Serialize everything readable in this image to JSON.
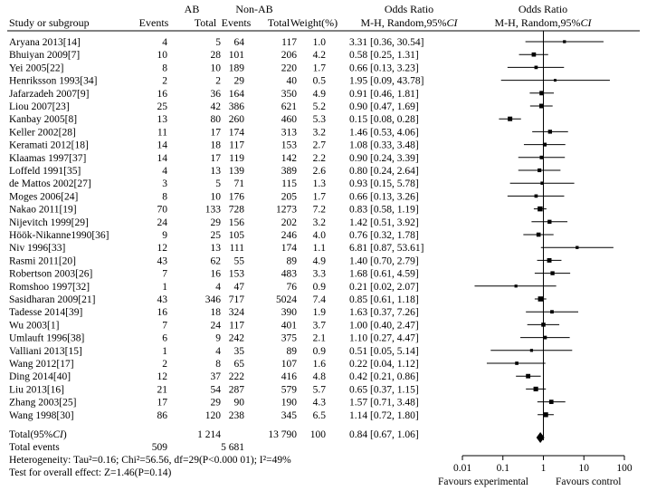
{
  "header": {
    "study_col": "Study or subgroup",
    "group1_name": "AB",
    "group2_name": "Non-AB",
    "events_label": "Events",
    "total_label": "Total",
    "weight_label": "Weight(%)",
    "or_title": "Odds Ratio",
    "or_method": "M-H, Random,95%",
    "ci_italic": "CI"
  },
  "studies": [
    {
      "name": "Aryana 2013[14]",
      "e1": "4",
      "t1": "5",
      "e2": "64",
      "t2": "117",
      "w": "1.0",
      "ci": "3.31 [0.36, 30.54]"
    },
    {
      "name": "Bhuiyan 2009[7]",
      "e1": "10",
      "t1": "28",
      "e2": "101",
      "t2": "206",
      "w": "4.2",
      "ci": "0.58 [0.25, 1.31]"
    },
    {
      "name": "Yei 2005[22]",
      "e1": "8",
      "t1": "10",
      "e2": "189",
      "t2": "220",
      "w": "1.7",
      "ci": "0.66 [0.13, 3.23]"
    },
    {
      "name": "Henriksson 1993[34]",
      "e1": "2",
      "t1": "2",
      "e2": "29",
      "t2": "40",
      "w": "0.5",
      "ci": "1.95 [0.09, 43.78]"
    },
    {
      "name": "Jafarzadeh 2007[9]",
      "e1": "16",
      "t1": "36",
      "e2": "164",
      "t2": "350",
      "w": "4.9",
      "ci": "0.91 [0.46, 1.81]"
    },
    {
      "name": "Liou 2007[23]",
      "e1": "25",
      "t1": "42",
      "e2": "386",
      "t2": "621",
      "w": "5.2",
      "ci": "0.90 [0.47, 1.69]"
    },
    {
      "name": "Kanbay 2005[8]",
      "e1": "13",
      "t1": "80",
      "e2": "260",
      "t2": "460",
      "w": "5.3",
      "ci": "0.15 [0.08, 0.28]"
    },
    {
      "name": "Keller 2002[28]",
      "e1": "11",
      "t1": "17",
      "e2": "174",
      "t2": "313",
      "w": "3.2",
      "ci": "1.46 [0.53, 4.06]"
    },
    {
      "name": "Keramati 2012[18]",
      "e1": "14",
      "t1": "18",
      "e2": "117",
      "t2": "153",
      "w": "2.7",
      "ci": "1.08 [0.33, 3.48]"
    },
    {
      "name": "Klaamas 1997[37]",
      "e1": "14",
      "t1": "17",
      "e2": "119",
      "t2": "142",
      "w": "2.2",
      "ci": "0.90 [0.24, 3.39]"
    },
    {
      "name": "Loffeld 1991[35]",
      "e1": "4",
      "t1": "13",
      "e2": "139",
      "t2": "389",
      "w": "2.6",
      "ci": "0.80 [0.24, 2.64]"
    },
    {
      "name": "de Mattos 2002[27]",
      "e1": "3",
      "t1": "5",
      "e2": "71",
      "t2": "115",
      "w": "1.3",
      "ci": "0.93 [0.15, 5.78]"
    },
    {
      "name": "Moges 2006[24]",
      "e1": "8",
      "t1": "10",
      "e2": "176",
      "t2": "205",
      "w": "1.7",
      "ci": "0.66 [0.13, 3.26]"
    },
    {
      "name": "Nakao 2011[19]",
      "e1": "70",
      "t1": "133",
      "e2": "728",
      "t2": "1273",
      "w": "7.2",
      "ci": "0.83 [0.58, 1.19]"
    },
    {
      "name": "Nijevitch 1999[29]",
      "e1": "24",
      "t1": "29",
      "e2": "156",
      "t2": "202",
      "w": "3.2",
      "ci": "1.42 [0.51, 3.92]"
    },
    {
      "name": "Höök-Nikanne1990[36]",
      "e1": "9",
      "t1": "25",
      "e2": "105",
      "t2": "246",
      "w": "4.0",
      "ci": "0.76 [0.32, 1.78]"
    },
    {
      "name": "Niv 1996[33]",
      "e1": "12",
      "t1": "13",
      "e2": "111",
      "t2": "174",
      "w": "1.1",
      "ci": "6.81 [0.87, 53.61]"
    },
    {
      "name": "Rasmi 2011[20]",
      "e1": "43",
      "t1": "62",
      "e2": "55",
      "t2": "89",
      "w": "4.9",
      "ci": "1.40 [0.70, 2.79]"
    },
    {
      "name": "Robertson 2003[26]",
      "e1": "7",
      "t1": "16",
      "e2": "153",
      "t2": "483",
      "w": "3.3",
      "ci": "1.68 [0.61, 4.59]"
    },
    {
      "name": "Romshoo 1997[32]",
      "e1": "1",
      "t1": "4",
      "e2": "47",
      "t2": "76",
      "w": "0.9",
      "ci": "0.21 [0.02, 2.07]"
    },
    {
      "name": "Sasidharan 2009[21]",
      "e1": "43",
      "t1": "346",
      "e2": "717",
      "t2": "5024",
      "w": "7.4",
      "ci": "0.85 [0.61, 1.18]"
    },
    {
      "name": "Tadesse 2014[39]",
      "e1": "16",
      "t1": "18",
      "e2": "324",
      "t2": "390",
      "w": "1.9",
      "ci": "1.63 [0.37, 7.26]"
    },
    {
      "name": "Wu 2003[1]",
      "e1": "7",
      "t1": "24",
      "e2": "117",
      "t2": "401",
      "w": "3.7",
      "ci": "1.00 [0.40, 2.47]"
    },
    {
      "name": "Umlauft 1996[38]",
      "e1": "6",
      "t1": "9",
      "e2": "242",
      "t2": "375",
      "w": "2.1",
      "ci": "1.10 [0.27, 4.47]"
    },
    {
      "name": "Valliani 2013[15]",
      "e1": "1",
      "t1": "4",
      "e2": "35",
      "t2": "89",
      "w": "0.9",
      "ci": "0.51 [0.05, 5.14]"
    },
    {
      "name": "Wang 2012[17]",
      "e1": "2",
      "t1": "8",
      "e2": "65",
      "t2": "107",
      "w": "1.6",
      "ci": "0.22 [0.04, 1.12]"
    },
    {
      "name": "Ding 2014[40]",
      "e1": "12",
      "t1": "37",
      "e2": "222",
      "t2": "416",
      "w": "4.8",
      "ci": "0.42 [0.21, 0.86]"
    },
    {
      "name": "Liu 2013[16]",
      "e1": "21",
      "t1": "54",
      "e2": "287",
      "t2": "579",
      "w": "5.7",
      "ci": "0.65 [0.37, 1.15]"
    },
    {
      "name": "Zhang 2003[25]",
      "e1": "17",
      "t1": "29",
      "e2": "90",
      "t2": "190",
      "w": "4.3",
      "ci": "1.57 [0.71, 3.48]"
    },
    {
      "name": "Wang 1998[30]",
      "e1": "86",
      "t1": "120",
      "e2": "238",
      "t2": "345",
      "w": "6.5",
      "ci": "1.14 [0.72, 1.80]"
    }
  ],
  "total": {
    "label": "Total(95%",
    "ci_italic": "CI",
    "label_close": ")",
    "t1": "1 214",
    "t2": "13 790",
    "w": "100",
    "ci": "0.84 [0.67, 1.06]",
    "events_label": "Total events",
    "e1": "509",
    "e2": "5 681"
  },
  "heterogeneity": "Heterogeneity: Tau²=0.16; Chi²=56.56, df=29(P<0.000 01); I²=49%",
  "overall_effect": "Test for overall effect: Z=1.46(P=0.14)",
  "axis": {
    "tick_labels": [
      "0.01",
      "0.1",
      "1",
      "10",
      "100"
    ],
    "favours_left": "Favours experimental",
    "favours_right": "Favours control"
  },
  "chart_data": {
    "type": "forest",
    "title": "Odds Ratio M-H, Random,95%CI",
    "x_scale": "log",
    "xlim": [
      0.01,
      100
    ],
    "x_ticks": [
      0.01,
      0.1,
      1,
      10,
      100
    ],
    "reference_line": 1,
    "xlabel_left": "Favours experimental",
    "xlabel_right": "Favours control",
    "studies": [
      {
        "name": "Aryana 2013[14]",
        "or": 3.31,
        "lo": 0.36,
        "hi": 30.54,
        "weight": 1.0
      },
      {
        "name": "Bhuiyan 2009[7]",
        "or": 0.58,
        "lo": 0.25,
        "hi": 1.31,
        "weight": 4.2
      },
      {
        "name": "Yei 2005[22]",
        "or": 0.66,
        "lo": 0.13,
        "hi": 3.23,
        "weight": 1.7
      },
      {
        "name": "Henriksson 1993[34]",
        "or": 1.95,
        "lo": 0.09,
        "hi": 43.78,
        "weight": 0.5
      },
      {
        "name": "Jafarzadeh 2007[9]",
        "or": 0.91,
        "lo": 0.46,
        "hi": 1.81,
        "weight": 4.9
      },
      {
        "name": "Liou 2007[23]",
        "or": 0.9,
        "lo": 0.47,
        "hi": 1.69,
        "weight": 5.2
      },
      {
        "name": "Kanbay 2005[8]",
        "or": 0.15,
        "lo": 0.08,
        "hi": 0.28,
        "weight": 5.3
      },
      {
        "name": "Keller 2002[28]",
        "or": 1.46,
        "lo": 0.53,
        "hi": 4.06,
        "weight": 3.2
      },
      {
        "name": "Keramati 2012[18]",
        "or": 1.08,
        "lo": 0.33,
        "hi": 3.48,
        "weight": 2.7
      },
      {
        "name": "Klaamas 1997[37]",
        "or": 0.9,
        "lo": 0.24,
        "hi": 3.39,
        "weight": 2.2
      },
      {
        "name": "Loffeld 1991[35]",
        "or": 0.8,
        "lo": 0.24,
        "hi": 2.64,
        "weight": 2.6
      },
      {
        "name": "de Mattos 2002[27]",
        "or": 0.93,
        "lo": 0.15,
        "hi": 5.78,
        "weight": 1.3
      },
      {
        "name": "Moges 2006[24]",
        "or": 0.66,
        "lo": 0.13,
        "hi": 3.26,
        "weight": 1.7
      },
      {
        "name": "Nakao 2011[19]",
        "or": 0.83,
        "lo": 0.58,
        "hi": 1.19,
        "weight": 7.2
      },
      {
        "name": "Nijevitch 1999[29]",
        "or": 1.42,
        "lo": 0.51,
        "hi": 3.92,
        "weight": 3.2
      },
      {
        "name": "Höök-Nikanne1990[36]",
        "or": 0.76,
        "lo": 0.32,
        "hi": 1.78,
        "weight": 4.0
      },
      {
        "name": "Niv 1996[33]",
        "or": 6.81,
        "lo": 0.87,
        "hi": 53.61,
        "weight": 1.1
      },
      {
        "name": "Rasmi 2011[20]",
        "or": 1.4,
        "lo": 0.7,
        "hi": 2.79,
        "weight": 4.9
      },
      {
        "name": "Robertson 2003[26]",
        "or": 1.68,
        "lo": 0.61,
        "hi": 4.59,
        "weight": 3.3
      },
      {
        "name": "Romshoo 1997[32]",
        "or": 0.21,
        "lo": 0.02,
        "hi": 2.07,
        "weight": 0.9
      },
      {
        "name": "Sasidharan 2009[21]",
        "or": 0.85,
        "lo": 0.61,
        "hi": 1.18,
        "weight": 7.4
      },
      {
        "name": "Tadesse 2014[39]",
        "or": 1.63,
        "lo": 0.37,
        "hi": 7.26,
        "weight": 1.9
      },
      {
        "name": "Wu 2003[1]",
        "or": 1.0,
        "lo": 0.4,
        "hi": 2.47,
        "weight": 3.7
      },
      {
        "name": "Umlauft 1996[38]",
        "or": 1.1,
        "lo": 0.27,
        "hi": 4.47,
        "weight": 2.1
      },
      {
        "name": "Valliani 2013[15]",
        "or": 0.51,
        "lo": 0.05,
        "hi": 5.14,
        "weight": 0.9
      },
      {
        "name": "Wang 2012[17]",
        "or": 0.22,
        "lo": 0.04,
        "hi": 1.12,
        "weight": 1.6
      },
      {
        "name": "Ding 2014[40]",
        "or": 0.42,
        "lo": 0.21,
        "hi": 0.86,
        "weight": 4.8
      },
      {
        "name": "Liu 2013[16]",
        "or": 0.65,
        "lo": 0.37,
        "hi": 1.15,
        "weight": 5.7
      },
      {
        "name": "Zhang 2003[25]",
        "or": 1.57,
        "lo": 0.71,
        "hi": 3.48,
        "weight": 4.3
      },
      {
        "name": "Wang 1998[30]",
        "or": 1.14,
        "lo": 0.72,
        "hi": 1.8,
        "weight": 6.5
      }
    ],
    "pooled": {
      "or": 0.84,
      "lo": 0.67,
      "hi": 1.06,
      "weight": 100
    }
  }
}
